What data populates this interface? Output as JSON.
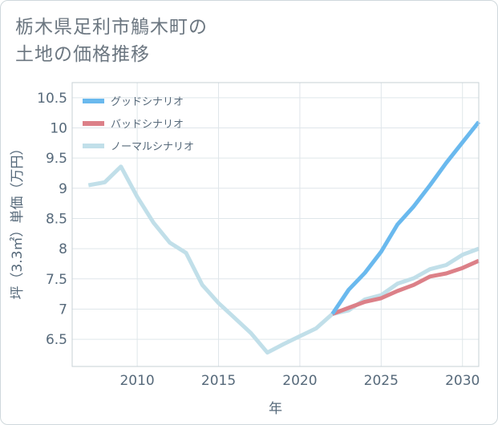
{
  "title_lines": [
    "栃木県足利市鵤木町の",
    "土地の価格推移"
  ],
  "chart_data": {
    "type": "line",
    "title": "栃木県足利市鵤木町の土地の価格推移",
    "xlabel": "年",
    "ylabel": "坪（3.3㎡）単価（万円）",
    "xlim": [
      2006,
      2031
    ],
    "ylim": [
      6.05,
      10.75
    ],
    "xticks": [
      2010,
      2015,
      2020,
      2025,
      2030
    ],
    "yticks": [
      6.5,
      7,
      7.5,
      8,
      8.5,
      9,
      9.5,
      10,
      10.5
    ],
    "grid": true,
    "legend_position": "top-left",
    "series": [
      {
        "name": "グッドシナリオ",
        "color": "#6ab9ee",
        "x": [
          2022,
          2023,
          2024,
          2025,
          2026,
          2027,
          2028,
          2029,
          2030,
          2031
        ],
        "y": [
          6.92,
          7.32,
          7.6,
          7.95,
          8.4,
          8.7,
          9.05,
          9.42,
          9.76,
          10.1
        ]
      },
      {
        "name": "バッドシナリオ",
        "color": "#dc8088",
        "x": [
          2022,
          2023,
          2024,
          2025,
          2026,
          2027,
          2028,
          2029,
          2030,
          2031
        ],
        "y": [
          6.92,
          7.02,
          7.12,
          7.18,
          7.3,
          7.4,
          7.54,
          7.59,
          7.68,
          7.8
        ]
      },
      {
        "name": "ノーマルシナリオ",
        "color": "#c1dfe9",
        "x": [
          2007,
          2008,
          2009,
          2010,
          2011,
          2012,
          2013,
          2014,
          2015,
          2016,
          2017,
          2018,
          2019,
          2020,
          2021,
          2022,
          2023,
          2024,
          2025,
          2026,
          2027,
          2028,
          2029,
          2030,
          2031
        ],
        "y": [
          9.05,
          9.1,
          9.36,
          8.86,
          8.43,
          8.1,
          7.93,
          7.4,
          7.1,
          6.85,
          6.6,
          6.28,
          6.42,
          6.55,
          6.68,
          6.92,
          6.98,
          7.16,
          7.23,
          7.42,
          7.51,
          7.66,
          7.73,
          7.9,
          8.0
        ]
      }
    ]
  }
}
